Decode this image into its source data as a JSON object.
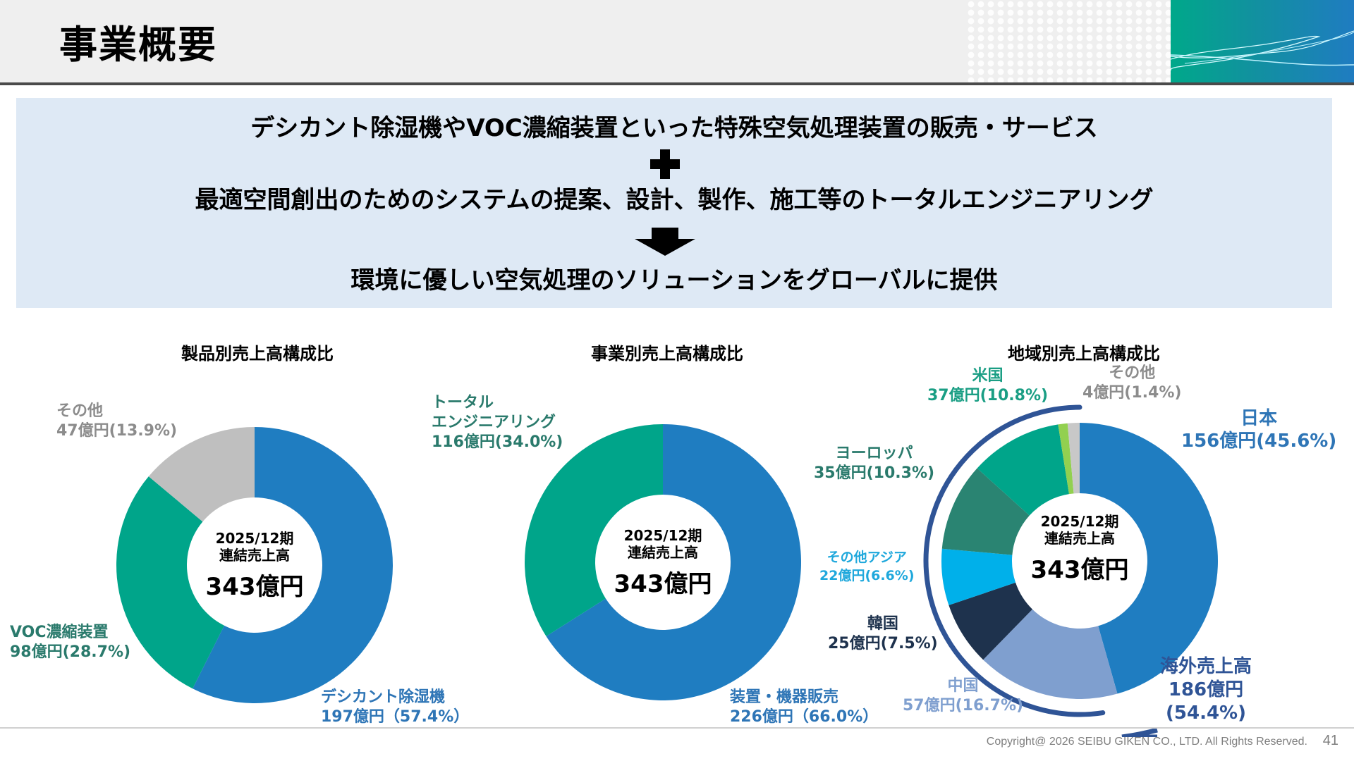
{
  "header": {
    "title": "事業概要"
  },
  "banner": {
    "line1": "デシカント除湿機やVOC濃縮装置といった特殊空気処理装置の販売・サービス",
    "plus_icon": "plus-icon",
    "line2": "最適空間創出のためのシステムの提案、設計、製作、施工等のトータルエンジニアリング",
    "arrow_icon": "arrow-down-icon",
    "line3": "環境に優しい空気処理のソリューションをグローバルに提供"
  },
  "center_label": {
    "period": "2025/12期",
    "caption": "連結売上高",
    "total": "343億円"
  },
  "charts": {
    "product": {
      "title": "製品別売上高構成比",
      "labels": {
        "desiccant_name": "デシカント除湿機",
        "desiccant_value": "197億円（57.4%）",
        "voc_name": "VOC濃縮装置",
        "voc_value": "98億円(28.7%)",
        "other_name": "その他",
        "other_value": "47億円(13.9%)"
      }
    },
    "business": {
      "title": "事業別売上高構成比",
      "labels": {
        "equipment_name": "装置・機器販売",
        "equipment_value": "226億円（66.0%）",
        "engineering_name1": "トータル",
        "engineering_name2": "エンジニアリング",
        "engineering_value": "116億円(34.0%)"
      }
    },
    "region": {
      "title": "地域別売上高構成比",
      "labels": {
        "japan_name": "日本",
        "japan_value": "156億円(45.6%)",
        "china_name": "中国",
        "china_value": "57億円(16.7%)",
        "korea_name": "韓国",
        "korea_value": "25億円(7.5%)",
        "other_asia_name": "その他アジア",
        "other_asia_value": "22億円(6.6%)",
        "europe_name": "ヨーロッパ",
        "europe_value": "35億円(10.3%)",
        "usa_name": "米国",
        "usa_value": "37億円(10.8%)",
        "other_name": "その他",
        "other_value": "4億円(1.4%)",
        "overseas_name": "海外売上高",
        "overseas_value": "186億円",
        "overseas_pct": "(54.4%)"
      }
    }
  },
  "footer": {
    "copyright": "Copyright@ 2026 SEIBU GIKEN CO., LTD. All Rights  Reserved.",
    "page_number": "41"
  },
  "colors": {
    "blue": "#1f7dc1",
    "teal": "#00a58a",
    "gray": "#bfbfbf",
    "china": "#7f9fcf",
    "korea": "#1e324d",
    "other_asia": "#00b0ea",
    "europe": "#2a8472",
    "green_sliver": "#92d050",
    "overseas_arc": "#2f5496",
    "banner_bg": "#dee9f5"
  },
  "chart_data": [
    {
      "type": "pie",
      "title": "製品別売上高構成比",
      "center_text": "2025/12期 連結売上高 343億円",
      "unit": "億円",
      "categories": [
        "デシカント除湿機",
        "VOC濃縮装置",
        "その他"
      ],
      "values": [
        197,
        98,
        47
      ],
      "percentages": [
        57.4,
        28.7,
        13.9
      ],
      "colors": [
        "#1f7dc1",
        "#00a58a",
        "#bfbfbf"
      ],
      "donut": true
    },
    {
      "type": "pie",
      "title": "事業別売上高構成比",
      "center_text": "2025/12期 連結売上高 343億円",
      "unit": "億円",
      "categories": [
        "装置・機器販売",
        "トータルエンジニアリング"
      ],
      "values": [
        226,
        116
      ],
      "percentages": [
        66.0,
        34.0
      ],
      "colors": [
        "#1f7dc1",
        "#00a58a"
      ],
      "donut": true
    },
    {
      "type": "pie",
      "title": "地域別売上高構成比",
      "center_text": "2025/12期 連結売上高 343億円",
      "unit": "億円",
      "categories": [
        "日本",
        "中国",
        "韓国",
        "その他アジア",
        "ヨーロッパ",
        "米国",
        "その他"
      ],
      "values": [
        156,
        57,
        25,
        22,
        35,
        37,
        4
      ],
      "percentages": [
        45.6,
        16.7,
        7.5,
        6.6,
        10.3,
        10.8,
        1.4
      ],
      "colors": [
        "#1f7dc1",
        "#7f9fcf",
        "#1e324d",
        "#00b0ea",
        "#2a8472",
        "#00a58a",
        "#c8c8c8"
      ],
      "annotation": "海外売上高 186億円 (54.4%)",
      "donut": true
    }
  ]
}
